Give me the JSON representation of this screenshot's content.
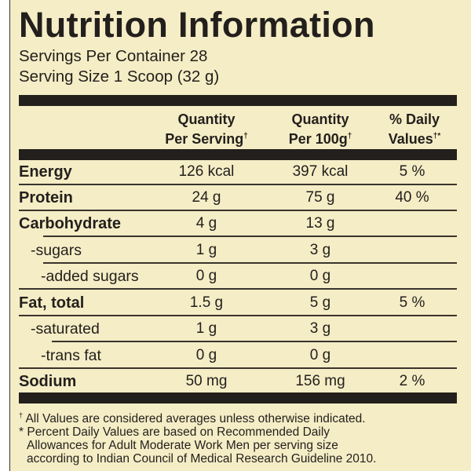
{
  "title": "Nutrition Information",
  "servings_per_container": "Servings Per Container 28",
  "serving_size": "Serving Size 1 Scoop (32 g)",
  "columns": {
    "per_serving": [
      "Quantity",
      "Per Serving",
      "†"
    ],
    "per_100g": [
      "Quantity",
      "Per 100g",
      "†"
    ],
    "daily": [
      "% Daily",
      "Values",
      "†*"
    ]
  },
  "rows": [
    {
      "label": "Energy",
      "bold": true,
      "per_serving": "126 kcal",
      "per_100g": "397 kcal",
      "daily": "5 %"
    },
    {
      "label": "Protein",
      "bold": true,
      "per_serving": "24 g",
      "per_100g": "75 g",
      "daily": "40 %"
    },
    {
      "label": "Carbohydrate",
      "bold": true,
      "per_serving": "4 g",
      "per_100g": "13 g",
      "daily": ""
    },
    {
      "label": "-sugars",
      "bold": false,
      "per_serving": "1 g",
      "per_100g": "3 g",
      "daily": ""
    },
    {
      "label": "-added sugars",
      "bold": false,
      "per_serving": "0 g",
      "per_100g": "0 g",
      "daily": ""
    },
    {
      "label": "Fat, total",
      "bold": true,
      "per_serving": "1.5 g",
      "per_100g": "5 g",
      "daily": "5 %"
    },
    {
      "label": "-saturated",
      "bold": false,
      "per_serving": "1 g",
      "per_100g": "3 g",
      "daily": ""
    },
    {
      "label": "-trans fat",
      "bold": false,
      "per_serving": "0 g",
      "per_100g": "0 g",
      "daily": ""
    },
    {
      "label": "Sodium",
      "bold": true,
      "per_serving": "50 mg",
      "per_100g": "156 mg",
      "daily": "2 %"
    }
  ],
  "footnotes": [
    {
      "mark": "†",
      "text": "All Values are considered averages unless otherwise indicated."
    },
    {
      "mark": "*",
      "text": "Percent Daily Values are based on Recommended Daily"
    },
    {
      "mark": "",
      "text": "Allowances for Adult Moderate Work Men per serving size"
    },
    {
      "mark": "",
      "text": "according to Indian Council of Medical Research Guideline 2010."
    }
  ],
  "colors": {
    "background": "#f5edc6",
    "ink": "#231f1c"
  }
}
